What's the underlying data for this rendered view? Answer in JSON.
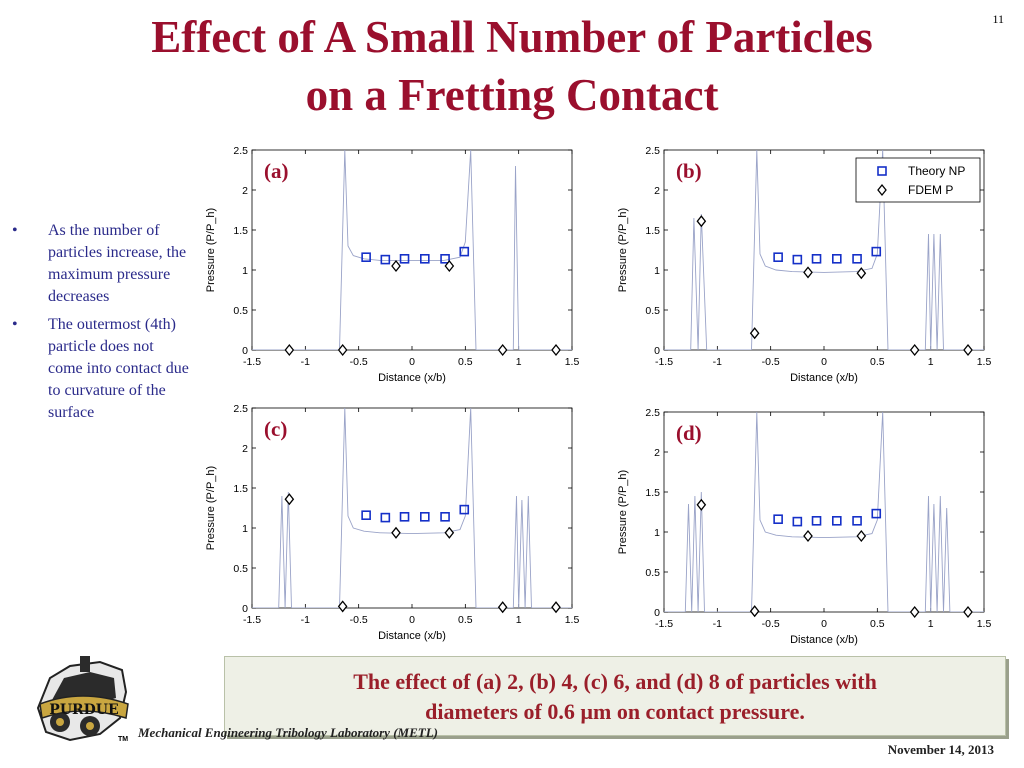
{
  "slide_number": "11",
  "title": [
    "Effect of A Small Number of Particles",
    "on a Fretting Contact"
  ],
  "bullets": [
    "As the number of particles increase, the maximum pressure decreases",
    "The outermost (4th) particle does not come into contact due to curvature of the surface"
  ],
  "caption": [
    "The effect of (a) 2, (b) 4, (c) 6, and (d) 8 of particles with",
    "diameters of 0.6 µm on contact pressure."
  ],
  "footer": {
    "lab_name": "Mechanical Engineering Tribology Laboratory (METL)",
    "date": "November 14, 2013",
    "tm": "TM",
    "logo_text": "PURDUE"
  },
  "colors": {
    "title": "#9a0f2d",
    "theory_marker": "#1530c8",
    "fdem_marker": "#000000",
    "curve": "#9aa3c8"
  },
  "chart_data": [
    {
      "type": "scatter",
      "label": "(a)",
      "xlabel": "Distance (x/b)",
      "ylabel": "Pressure (P/P_h)",
      "xlim": [
        -1.5,
        1.5
      ],
      "ylim": [
        0,
        2.5
      ],
      "xticks": [
        -1.5,
        -1,
        -0.5,
        0,
        0.5,
        1,
        1.5
      ],
      "yticks": [
        0,
        0.5,
        1,
        1.5,
        2,
        2.5
      ],
      "legend": null,
      "series": [
        {
          "name": "Theory NP",
          "marker": "square",
          "x": [
            -0.43,
            -0.25,
            -0.07,
            0.12,
            0.31,
            0.49
          ],
          "y": [
            1.16,
            1.13,
            1.14,
            1.14,
            1.14,
            1.23
          ]
        },
        {
          "name": "FDEM P",
          "marker": "diamond",
          "x": [
            -1.15,
            -0.65,
            -0.15,
            0.35,
            0.85,
            1.35
          ],
          "y": [
            0,
            0,
            1.05,
            1.05,
            0,
            0
          ]
        }
      ],
      "curve": [
        [
          -1.5,
          0
        ],
        [
          -0.68,
          0
        ],
        [
          -0.63,
          2.5
        ],
        [
          -0.6,
          1.3
        ],
        [
          -0.55,
          1.18
        ],
        [
          -0.45,
          1.14
        ],
        [
          -0.3,
          1.12
        ],
        [
          0,
          1.12
        ],
        [
          0.3,
          1.12
        ],
        [
          0.45,
          1.16
        ],
        [
          0.5,
          1.35
        ],
        [
          0.55,
          2.5
        ],
        [
          0.6,
          0
        ],
        [
          0.95,
          0
        ],
        [
          0.97,
          2.3
        ],
        [
          1.0,
          0
        ],
        [
          1.5,
          0
        ]
      ]
    },
    {
      "type": "scatter",
      "label": "(b)",
      "xlabel": "Distance (x/b)",
      "ylabel": "Pressure (P/P_h)",
      "xlim": [
        -1.5,
        1.5
      ],
      "ylim": [
        0,
        2.5
      ],
      "xticks": [
        -1.5,
        -1,
        -0.5,
        0,
        0.5,
        1,
        1.5
      ],
      "yticks": [
        0,
        0.5,
        1,
        1.5,
        2,
        2.5
      ],
      "legend": "top-right",
      "series": [
        {
          "name": "Theory NP",
          "marker": "square",
          "x": [
            -0.43,
            -0.25,
            -0.07,
            0.12,
            0.31,
            0.49
          ],
          "y": [
            1.16,
            1.13,
            1.14,
            1.14,
            1.14,
            1.23
          ]
        },
        {
          "name": "FDEM P",
          "marker": "diamond",
          "x": [
            -1.15,
            -0.65,
            -0.15,
            0.35,
            0.85,
            1.35
          ],
          "y": [
            1.61,
            0.21,
            0.97,
            0.96,
            0,
            0
          ]
        }
      ],
      "curve": [
        [
          -1.5,
          0
        ],
        [
          -1.25,
          0
        ],
        [
          -1.22,
          1.65
        ],
        [
          -1.18,
          0
        ],
        [
          -1.15,
          1.7
        ],
        [
          -1.1,
          0
        ],
        [
          -0.68,
          0
        ],
        [
          -0.63,
          2.5
        ],
        [
          -0.6,
          1.2
        ],
        [
          -0.55,
          1.05
        ],
        [
          -0.45,
          1.0
        ],
        [
          -0.3,
          0.98
        ],
        [
          0,
          0.97
        ],
        [
          0.3,
          0.98
        ],
        [
          0.45,
          1.02
        ],
        [
          0.5,
          1.2
        ],
        [
          0.55,
          2.5
        ],
        [
          0.6,
          0
        ],
        [
          0.95,
          0
        ],
        [
          0.98,
          1.45
        ],
        [
          1.0,
          0
        ],
        [
          1.03,
          1.45
        ],
        [
          1.06,
          0
        ],
        [
          1.09,
          1.45
        ],
        [
          1.12,
          0
        ],
        [
          1.5,
          0
        ]
      ]
    },
    {
      "type": "scatter",
      "label": "(c)",
      "xlabel": "Distance (x/b)",
      "ylabel": "Pressure (P/P_h)",
      "xlim": [
        -1.5,
        1.5
      ],
      "ylim": [
        0,
        2.5
      ],
      "xticks": [
        -1.5,
        -1,
        -0.5,
        0,
        0.5,
        1,
        1.5
      ],
      "yticks": [
        0,
        0.5,
        1,
        1.5,
        2,
        2.5
      ],
      "legend": null,
      "series": [
        {
          "name": "Theory NP",
          "marker": "square",
          "x": [
            -0.43,
            -0.25,
            -0.07,
            0.12,
            0.31,
            0.49
          ],
          "y": [
            1.16,
            1.13,
            1.14,
            1.14,
            1.14,
            1.23
          ]
        },
        {
          "name": "FDEM P",
          "marker": "diamond",
          "x": [
            -1.15,
            -0.65,
            -0.15,
            0.35,
            0.85,
            1.35
          ],
          "y": [
            1.36,
            0.02,
            0.94,
            0.94,
            0.01,
            0.01
          ]
        }
      ],
      "curve": [
        [
          -1.5,
          0
        ],
        [
          -1.25,
          0
        ],
        [
          -1.22,
          1.4
        ],
        [
          -1.19,
          0
        ],
        [
          -1.16,
          1.45
        ],
        [
          -1.13,
          0
        ],
        [
          -0.68,
          0
        ],
        [
          -0.63,
          2.5
        ],
        [
          -0.6,
          1.15
        ],
        [
          -0.55,
          1.0
        ],
        [
          -0.45,
          0.96
        ],
        [
          -0.3,
          0.94
        ],
        [
          0,
          0.93
        ],
        [
          0.3,
          0.94
        ],
        [
          0.45,
          0.98
        ],
        [
          0.5,
          1.15
        ],
        [
          0.55,
          2.5
        ],
        [
          0.6,
          0
        ],
        [
          0.95,
          0
        ],
        [
          0.98,
          1.4
        ],
        [
          1.0,
          0
        ],
        [
          1.03,
          1.35
        ],
        [
          1.06,
          0
        ],
        [
          1.09,
          1.4
        ],
        [
          1.12,
          0
        ],
        [
          1.5,
          0
        ]
      ]
    },
    {
      "type": "scatter",
      "label": "(d)",
      "xlabel": "Distance (x/b)",
      "ylabel": "Pressure (P/P_h)",
      "xlim": [
        -1.5,
        1.5
      ],
      "ylim": [
        0,
        2.5
      ],
      "xticks": [
        -1.5,
        -1,
        -0.5,
        0,
        0.5,
        1,
        1.5
      ],
      "yticks": [
        0,
        0.5,
        1,
        1.5,
        2,
        2.5
      ],
      "legend": null,
      "series": [
        {
          "name": "Theory NP",
          "marker": "square",
          "x": [
            -0.43,
            -0.25,
            -0.07,
            0.12,
            0.31,
            0.49
          ],
          "y": [
            1.16,
            1.13,
            1.14,
            1.14,
            1.14,
            1.23
          ]
        },
        {
          "name": "FDEM P",
          "marker": "diamond",
          "x": [
            -1.15,
            -0.65,
            -0.15,
            0.35,
            0.85,
            1.35
          ],
          "y": [
            1.34,
            0.01,
            0.95,
            0.95,
            0,
            0
          ]
        }
      ],
      "curve": [
        [
          -1.5,
          0
        ],
        [
          -1.3,
          0
        ],
        [
          -1.27,
          1.35
        ],
        [
          -1.24,
          0
        ],
        [
          -1.21,
          1.45
        ],
        [
          -1.18,
          0
        ],
        [
          -1.15,
          1.5
        ],
        [
          -1.12,
          0
        ],
        [
          -0.68,
          0
        ],
        [
          -0.63,
          2.5
        ],
        [
          -0.6,
          1.15
        ],
        [
          -0.55,
          1.0
        ],
        [
          -0.45,
          0.96
        ],
        [
          -0.3,
          0.94
        ],
        [
          0,
          0.93
        ],
        [
          0.3,
          0.94
        ],
        [
          0.45,
          0.98
        ],
        [
          0.5,
          1.15
        ],
        [
          0.55,
          2.5
        ],
        [
          0.6,
          0
        ],
        [
          0.95,
          0
        ],
        [
          0.98,
          1.45
        ],
        [
          1.0,
          0
        ],
        [
          1.03,
          1.35
        ],
        [
          1.06,
          0
        ],
        [
          1.09,
          1.45
        ],
        [
          1.12,
          0
        ],
        [
          1.15,
          1.3
        ],
        [
          1.18,
          0
        ],
        [
          1.5,
          0
        ]
      ]
    }
  ]
}
